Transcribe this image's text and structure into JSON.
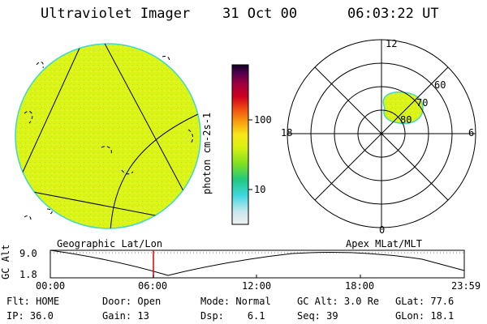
{
  "header": {
    "instrument": "Ultraviolet Imager",
    "date": "31 Oct 00",
    "time": "06:03:22 UT"
  },
  "colorbar": {
    "unit": "photon cm-2s-1",
    "ticks": [
      "100",
      "10"
    ]
  },
  "polar_plot": {
    "mlt_labels": [
      "12",
      "18",
      "6",
      "0"
    ],
    "lat_labels": [
      "60",
      "70",
      "80"
    ]
  },
  "timeline": {
    "left_caption": "Geographic Lat/Lon",
    "right_caption": "Apex MLat/MLT",
    "axis_label": "GC Alt",
    "y_ticks": [
      "9.0",
      "1.8"
    ],
    "x_ticks": [
      "00:00",
      "06:00",
      "12:00",
      "18:00",
      "23:59"
    ]
  },
  "footer": {
    "row1": [
      {
        "label": "Flt:",
        "value": "HOME"
      },
      {
        "label": "Door:",
        "value": "Open"
      },
      {
        "label": "Mode:",
        "value": "Normal"
      },
      {
        "label": "GC Alt:",
        "value": "3.0 Re"
      },
      {
        "label": "GLat:",
        "value": "77.6"
      }
    ],
    "row2": [
      {
        "label": "IP:",
        "value": "36.0"
      },
      {
        "label": "Gain:",
        "value": "13"
      },
      {
        "label": "Dsp:",
        "value": "6.1"
      },
      {
        "label": "Seq:",
        "value": "39"
      },
      {
        "label": "GLon:",
        "value": "18.1"
      }
    ]
  }
}
